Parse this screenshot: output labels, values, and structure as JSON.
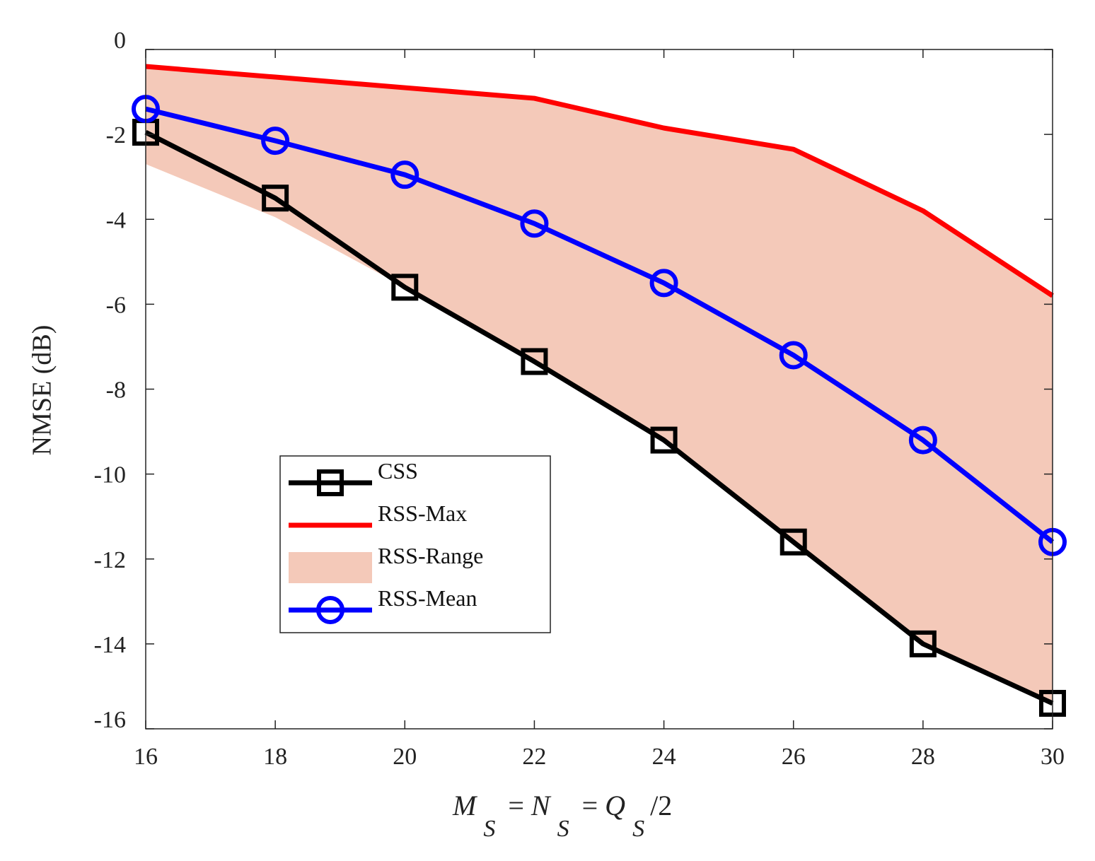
{
  "chart_data": {
    "type": "line",
    "title": "",
    "xlabel": {
      "parts": [
        {
          "text": "M",
          "style": "italic"
        },
        {
          "text": "S",
          "style": "italic-sub"
        },
        {
          "text": " = ",
          "style": "normal"
        },
        {
          "text": "N",
          "style": "italic"
        },
        {
          "text": "S",
          "style": "italic-sub"
        },
        {
          "text": " = ",
          "style": "normal"
        },
        {
          "text": "Q",
          "style": "italic"
        },
        {
          "text": "S",
          "style": "italic-sub"
        },
        {
          "text": "/2",
          "style": "normal"
        }
      ]
    },
    "ylabel": "NMSE (dB)",
    "xlim": [
      16,
      30
    ],
    "ylim": [
      -16,
      0
    ],
    "xticks": [
      16,
      18,
      20,
      22,
      24,
      26,
      28,
      30
    ],
    "yticks": [
      0,
      -2,
      -4,
      -6,
      -8,
      -10,
      -12,
      -14,
      -16
    ],
    "grid": false,
    "legend_position": "center-left",
    "x": [
      16,
      18,
      20,
      22,
      24,
      26,
      28,
      30
    ],
    "range": {
      "name": "RSS-Range",
      "color": "#f4c9b9",
      "upper": [
        -0.4,
        -0.65,
        -0.9,
        -1.15,
        -1.85,
        -2.35,
        -3.8,
        -5.8
      ],
      "lower": [
        -2.7,
        -3.95,
        -5.6,
        -7.3,
        -9.15,
        -11.55,
        -13.95,
        -15.4
      ]
    },
    "series": [
      {
        "name": "RSS-Max",
        "color": "#ff0000",
        "marker": "none",
        "values": [
          -0.4,
          -0.65,
          -0.9,
          -1.15,
          -1.85,
          -2.35,
          -3.8,
          -5.8
        ]
      },
      {
        "name": "CSS",
        "color": "#000000",
        "marker": "square",
        "values": [
          -1.95,
          -3.5,
          -5.6,
          -7.35,
          -9.2,
          -11.6,
          -14.0,
          -15.4
        ]
      },
      {
        "name": "RSS-Mean",
        "color": "#0000ff",
        "marker": "circle",
        "values": [
          -1.4,
          -2.15,
          -2.95,
          -4.1,
          -5.5,
          -7.2,
          -9.2,
          -11.6
        ]
      }
    ],
    "legend": [
      {
        "name": "CSS",
        "kind": "line-square",
        "color": "#000000"
      },
      {
        "name": "RSS-Max",
        "kind": "line",
        "color": "#ff0000"
      },
      {
        "name": "RSS-Range",
        "kind": "patch",
        "color": "#f4c9b9"
      },
      {
        "name": "RSS-Mean",
        "kind": "line-circle",
        "color": "#0000ff"
      }
    ]
  }
}
